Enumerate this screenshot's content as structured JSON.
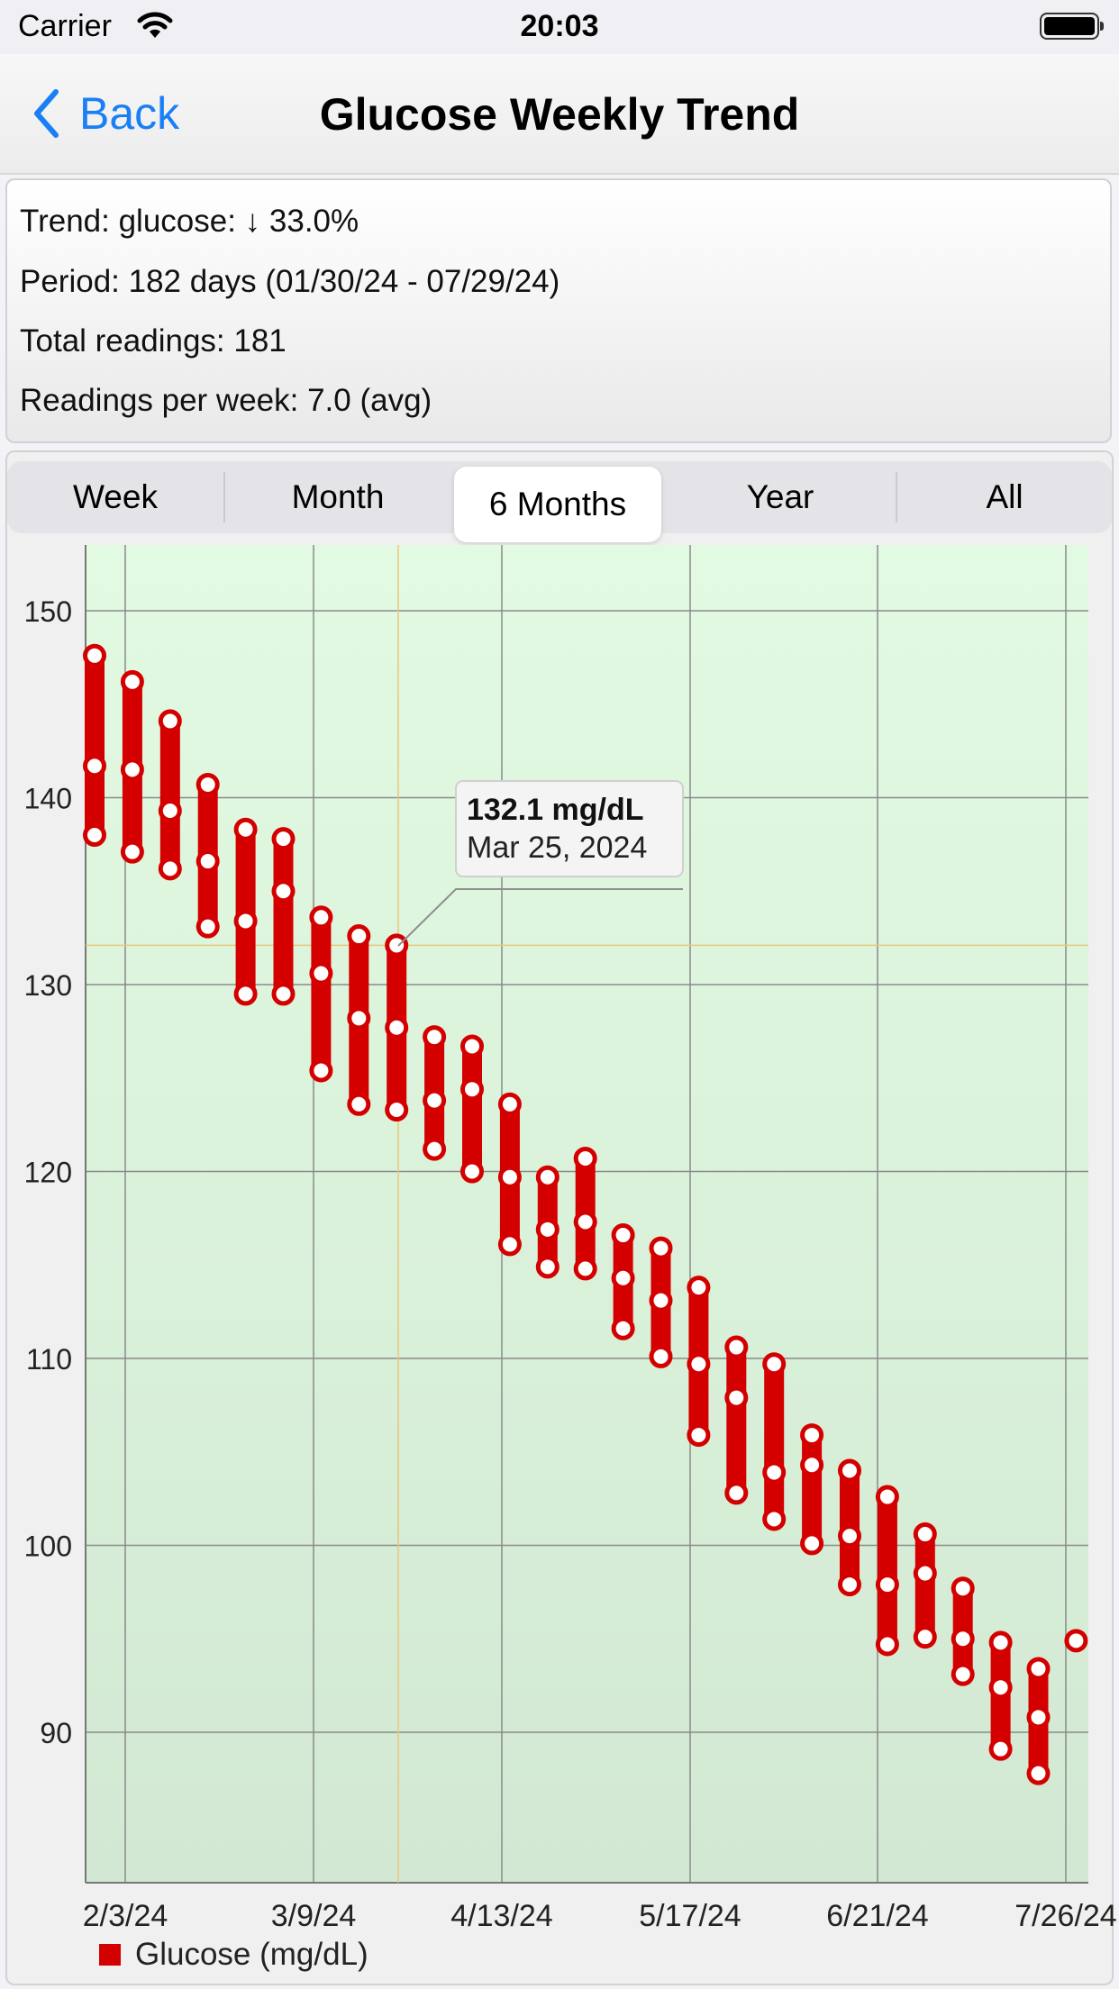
{
  "status_bar": {
    "carrier": "Carrier",
    "time": "20:03"
  },
  "nav": {
    "back_label": "Back",
    "title": "Glucose Weekly Trend"
  },
  "summary": {
    "trend": "Trend: glucose:  ↓ 33.0%",
    "period": "Period: 182 days (01/30/24 - 07/29/24)",
    "total": "Total readings: 181",
    "per_week": "Readings per week: 7.0 (avg)"
  },
  "segments": [
    {
      "label": "Week",
      "selected": false
    },
    {
      "label": "Month",
      "selected": false
    },
    {
      "label": "6 Months",
      "selected": true
    },
    {
      "label": "Year",
      "selected": false
    },
    {
      "label": "All",
      "selected": false
    }
  ],
  "tooltip": {
    "value": "132.1 mg/dL",
    "date": "Mar 25, 2024"
  },
  "legend": {
    "label": "Glucose (mg/dL)"
  },
  "colors": {
    "accent": "#1a7ff5",
    "series": "#d40000",
    "crosshair": "#e9c77a"
  },
  "chart_data": {
    "type": "range-bar",
    "y_ticks": [
      150,
      140,
      130,
      120,
      110,
      100,
      90
    ],
    "ylim": [
      82,
      154
    ],
    "x_tick_labels": [
      "2/3/24",
      "3/9/24",
      "4/13/24",
      "5/17/24",
      "6/21/24",
      "7/26/24"
    ],
    "grid": true,
    "legend_position": "bottom-left",
    "series": [
      {
        "name": "Glucose (mg/dL)",
        "weeks": [
          {
            "low": 138.0,
            "high": 147.6,
            "points": [
              147.6,
              141.7,
              138.0
            ]
          },
          {
            "low": 137.1,
            "high": 146.2,
            "points": [
              146.2,
              141.5,
              137.1
            ]
          },
          {
            "low": 136.2,
            "high": 144.1,
            "points": [
              144.1,
              139.3,
              136.2
            ]
          },
          {
            "low": 133.1,
            "high": 140.7,
            "points": [
              140.7,
              136.6,
              133.1
            ]
          },
          {
            "low": 129.5,
            "high": 138.3,
            "points": [
              138.3,
              133.4,
              129.5
            ]
          },
          {
            "low": 129.5,
            "high": 137.8,
            "points": [
              137.8,
              135.0,
              129.5
            ]
          },
          {
            "low": 125.4,
            "high": 133.6,
            "points": [
              133.6,
              130.6,
              125.4
            ]
          },
          {
            "low": 123.6,
            "high": 132.6,
            "points": [
              132.6,
              128.2,
              123.6
            ]
          },
          {
            "low": 123.3,
            "high": 132.1,
            "points": [
              132.1,
              127.7,
              123.3
            ]
          },
          {
            "low": 121.2,
            "high": 127.2,
            "points": [
              127.2,
              123.8,
              121.2
            ]
          },
          {
            "low": 120.0,
            "high": 126.7,
            "points": [
              126.7,
              124.4,
              120.0
            ]
          },
          {
            "low": 116.1,
            "high": 123.6,
            "points": [
              123.6,
              119.7,
              116.1
            ]
          },
          {
            "low": 114.9,
            "high": 119.7,
            "points": [
              119.7,
              116.9,
              114.9
            ]
          },
          {
            "low": 114.8,
            "high": 120.7,
            "points": [
              120.7,
              117.3,
              114.8
            ]
          },
          {
            "low": 111.6,
            "high": 116.6,
            "points": [
              116.6,
              114.3,
              111.6
            ]
          },
          {
            "low": 110.1,
            "high": 115.9,
            "points": [
              115.9,
              113.1,
              110.1
            ]
          },
          {
            "low": 105.9,
            "high": 113.8,
            "points": [
              113.8,
              109.7,
              105.9
            ]
          },
          {
            "low": 102.8,
            "high": 110.6,
            "points": [
              110.6,
              107.9,
              102.8
            ]
          },
          {
            "low": 101.4,
            "high": 109.7,
            "points": [
              109.7,
              103.9,
              101.4
            ]
          },
          {
            "low": 100.1,
            "high": 105.9,
            "points": [
              105.9,
              104.3,
              100.1
            ]
          },
          {
            "low": 97.9,
            "high": 104.0,
            "points": [
              104.0,
              100.5,
              97.9
            ]
          },
          {
            "low": 94.7,
            "high": 102.6,
            "points": [
              102.6,
              97.9,
              94.7
            ]
          },
          {
            "low": 95.1,
            "high": 100.6,
            "points": [
              100.6,
              98.5,
              95.1
            ]
          },
          {
            "low": 93.1,
            "high": 97.7,
            "points": [
              97.7,
              95.0,
              93.1
            ]
          },
          {
            "low": 89.1,
            "high": 94.8,
            "points": [
              94.8,
              92.4,
              89.1
            ]
          },
          {
            "low": 87.8,
            "high": 93.4,
            "points": [
              93.4,
              90.8,
              87.8
            ]
          },
          {
            "low": 94.9,
            "high": 94.9,
            "points": [
              94.9
            ]
          }
        ]
      }
    ]
  }
}
